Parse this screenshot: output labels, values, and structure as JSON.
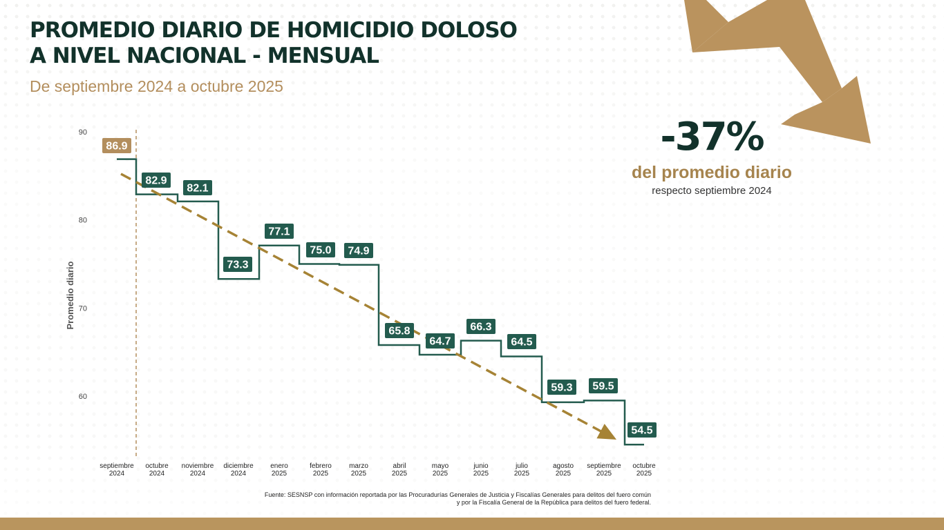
{
  "title": {
    "line1": "PROMEDIO DIARIO DE HOMICIDIO DOLOSO",
    "line2": "A NIVEL NACIONAL - MENSUAL"
  },
  "subtitle": "De septiembre 2024 a octubre 2025",
  "kpi": {
    "value": "-37%",
    "label": "del promedio diario",
    "sublabel": "respecto septiembre 2024"
  },
  "source": {
    "line1": "Fuente: SESNSP con información reportada por las Procuradurías Generales de Justicia y Fiscalías Generales para delitos del fuero común",
    "line2": "y por la Fiscalía General de la República para delitos del fuero federal."
  },
  "colors": {
    "green": "#235b4e",
    "gold": "#b38e5d",
    "trend": "#a68335",
    "dark": "#12322b"
  },
  "chart_data": {
    "type": "line",
    "style": "step",
    "title": "",
    "xlabel": "",
    "ylabel": "Promedio diario",
    "ylim": [
      55,
      90
    ],
    "yticks": [
      60,
      70,
      80,
      90
    ],
    "grid": false,
    "categories": [
      [
        "septiembre",
        "2024"
      ],
      [
        "octubre",
        "2024"
      ],
      [
        "noviembre",
        "2024"
      ],
      [
        "diciembre",
        "2024"
      ],
      [
        "enero",
        "2025"
      ],
      [
        "febrero",
        "2025"
      ],
      [
        "marzo",
        "2025"
      ],
      [
        "abril",
        "2025"
      ],
      [
        "mayo",
        "2025"
      ],
      [
        "junio",
        "2025"
      ],
      [
        "julio",
        "2025"
      ],
      [
        "agosto",
        "2025"
      ],
      [
        "septiembre",
        "2025"
      ],
      [
        "octubre",
        "2025"
      ]
    ],
    "series": [
      {
        "values": [
          86.9,
          82.9,
          82.1,
          73.3,
          77.1,
          75.0,
          74.9,
          65.8,
          64.7,
          66.3,
          64.5,
          59.3,
          59.5,
          54.5
        ],
        "labels": [
          "86.9",
          "82.9",
          "82.1",
          "73.3",
          "77.1",
          "75.0",
          "74.9",
          "65.8",
          "64.7",
          "66.3",
          "64.5",
          "59.3",
          "59.5",
          "54.5"
        ]
      }
    ],
    "trend": {
      "from_index": 0,
      "to_index": 13,
      "style": "dashed-arrow"
    },
    "reference_line": {
      "after_index": 0,
      "style": "dashed"
    }
  }
}
